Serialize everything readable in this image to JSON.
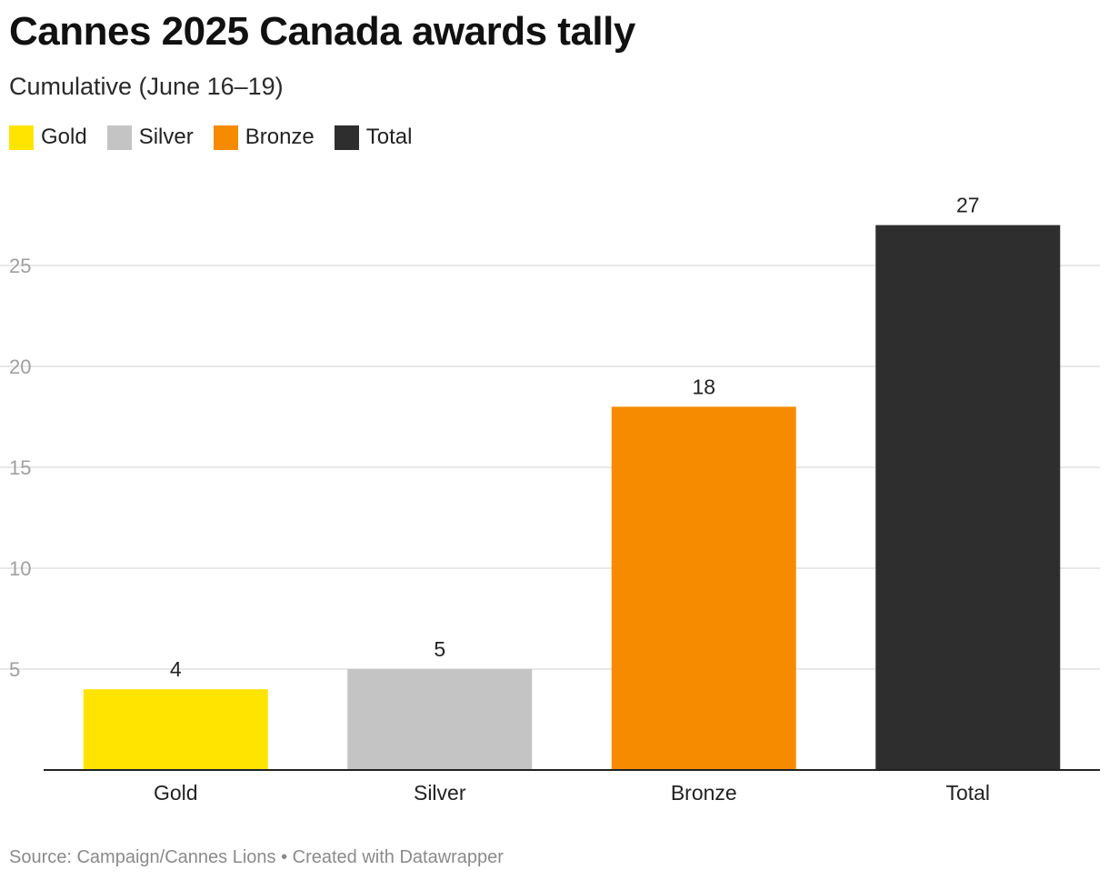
{
  "chart_data": {
    "type": "bar",
    "title": "Cannes 2025 Canada awards tally",
    "subtitle": "Cumulative (June 16–19)",
    "categories": [
      "Gold",
      "Silver",
      "Bronze",
      "Total"
    ],
    "values": [
      4,
      5,
      18,
      27
    ],
    "colors": [
      "#FFE400",
      "#C4C4C4",
      "#F78B00",
      "#2E2E2E"
    ],
    "legend": [
      {
        "label": "Gold",
        "color": "#FFE400"
      },
      {
        "label": "Silver",
        "color": "#C4C4C4"
      },
      {
        "label": "Bronze",
        "color": "#F78B00"
      },
      {
        "label": "Total",
        "color": "#2E2E2E"
      }
    ],
    "legend_position": "top-left",
    "yticks": [
      5,
      10,
      15,
      20,
      25
    ],
    "ylim": [
      0,
      27
    ],
    "grid": true,
    "xlabel": "",
    "ylabel": ""
  },
  "footer": {
    "text": "Source: Campaign/Cannes Lions • Created with Datawrapper"
  }
}
